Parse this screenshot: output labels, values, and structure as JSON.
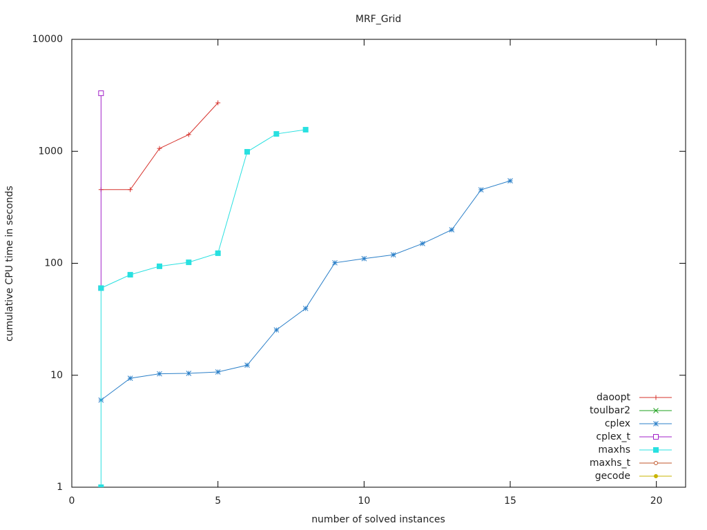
{
  "chart_data": {
    "type": "line",
    "title": "MRF_Grid",
    "x_label": "number of solved instances",
    "y_label": "cumulative CPU time in seconds",
    "xlim": [
      0,
      21
    ],
    "xticks": [
      0,
      5,
      10,
      15,
      20
    ],
    "ylim": [
      1,
      10000
    ],
    "yticks": [
      1,
      10,
      100,
      1000,
      10000
    ],
    "y_scale": "log",
    "legend": "lower right",
    "series": [
      {
        "name": "daoopt",
        "color": "#d6302a",
        "marker": "plus",
        "x": [
          1,
          2,
          3,
          4,
          5
        ],
        "values": [
          455,
          455,
          1060,
          1410,
          2710
        ]
      },
      {
        "name": "toulbar2",
        "color": "#1ea01e",
        "marker": "cross",
        "x": [],
        "values": []
      },
      {
        "name": "cplex",
        "color": "#2a7fc8",
        "marker": "star",
        "x": [
          1,
          2,
          3,
          4,
          5,
          6,
          7,
          8,
          9,
          10,
          11,
          12,
          13,
          14,
          15
        ],
        "values": [
          6.0,
          9.4,
          10.3,
          10.4,
          10.7,
          12.3,
          25.4,
          39.5,
          101,
          110,
          119,
          150,
          199,
          453,
          545
        ]
      },
      {
        "name": "cplex_t",
        "color": "#a020c8",
        "marker": "open-square",
        "x": [
          1,
          1
        ],
        "values": [
          60,
          3300
        ]
      },
      {
        "name": "maxhs",
        "color": "#28e0e0",
        "marker": "filled-square",
        "x": [
          1,
          1,
          2,
          3,
          4,
          5,
          6,
          7,
          8
        ],
        "values": [
          1,
          60,
          79,
          94,
          102,
          123,
          990,
          1430,
          1560
        ]
      },
      {
        "name": "maxhs_t",
        "color": "#c0562a",
        "marker": "open-circle",
        "x": [],
        "values": []
      },
      {
        "name": "gecode",
        "color": "#c8b400",
        "marker": "filled-circle",
        "x": [],
        "values": []
      }
    ]
  }
}
